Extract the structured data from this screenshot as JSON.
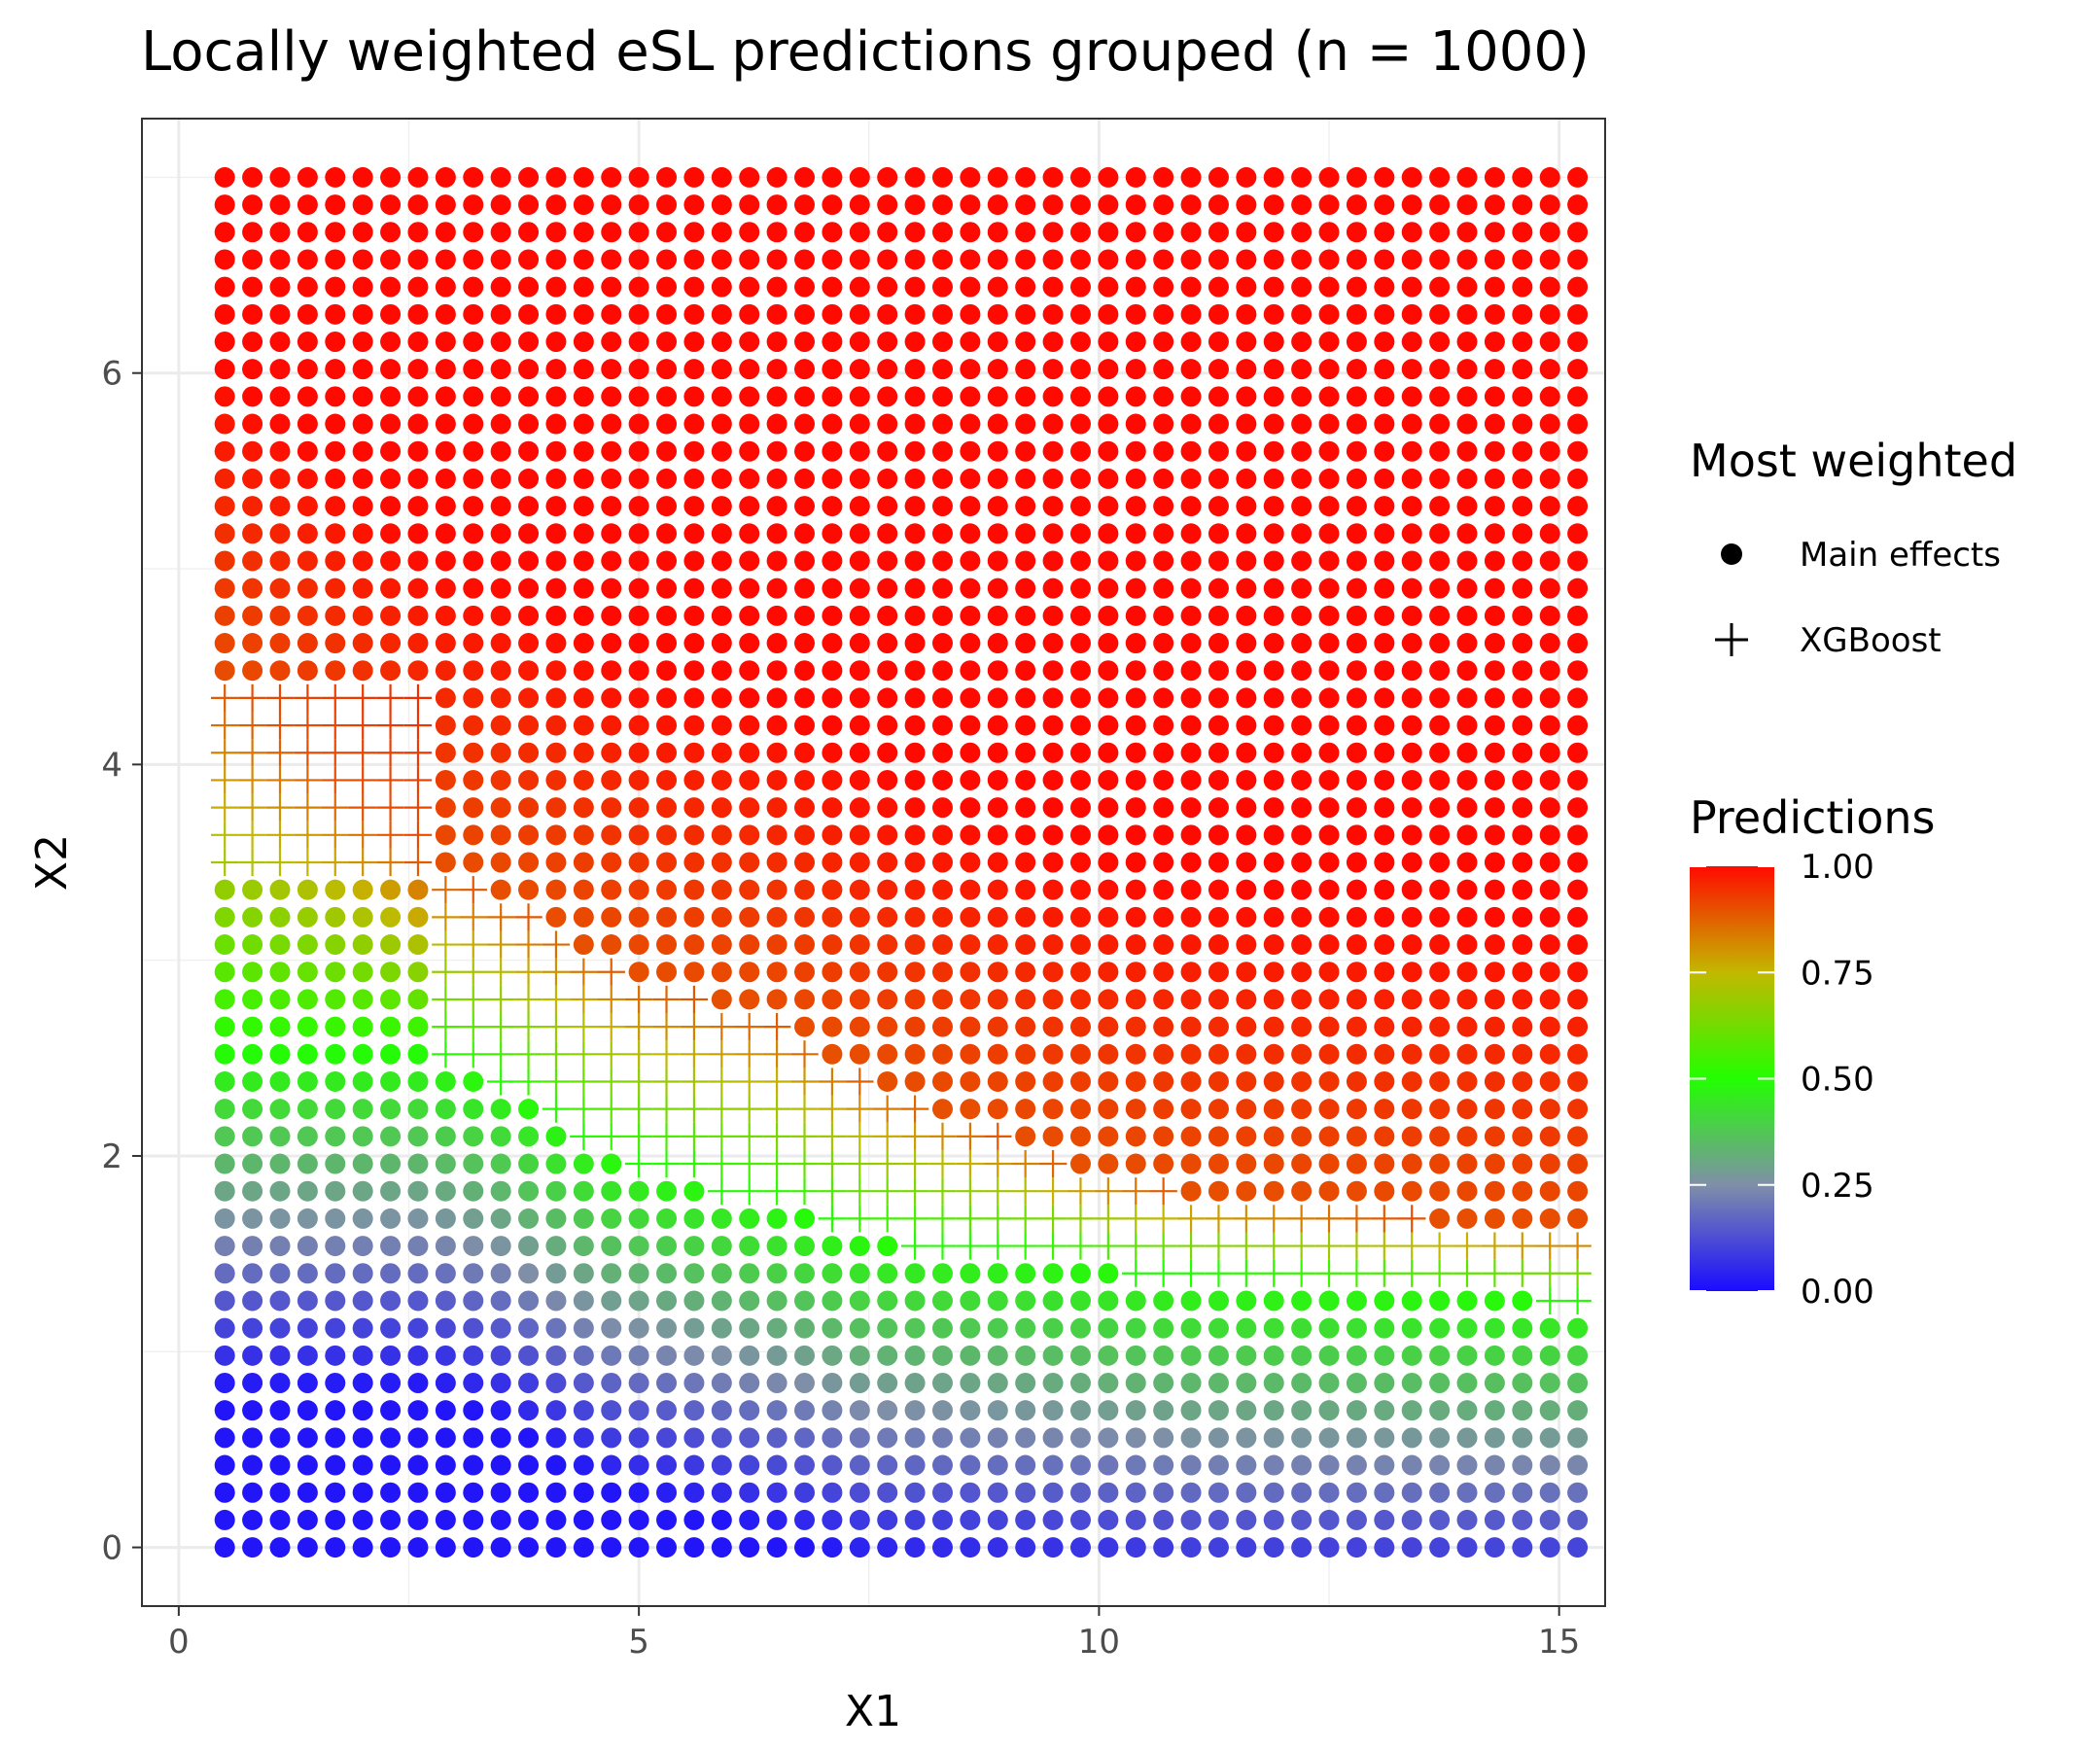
{
  "chart_data": {
    "type": "scatter",
    "title": "Locally weighted eSL predictions grouped (n = 1000)",
    "xlabel": "X1",
    "ylabel": "X2",
    "xlim": [
      -0.4,
      15.5
    ],
    "ylim": [
      -0.3,
      7.3
    ],
    "x_ticks": [
      0,
      5,
      10,
      15
    ],
    "y_ticks": [
      0,
      2,
      4,
      6
    ],
    "grid": true,
    "grid_spec": {
      "x_start": 0.4,
      "x_step": 0.3,
      "x_count": 50,
      "y_start": 0,
      "y_step": 0.14,
      "y_count": 51
    },
    "shape_legend": {
      "title": "Most weighted",
      "entries": [
        {
          "label": "Main effects",
          "shape": "circle"
        },
        {
          "label": "XGBoost",
          "shape": "plus"
        }
      ]
    },
    "color_legend": {
      "title": "Predictions",
      "breaks": [
        "0.00",
        "0.25",
        "0.50",
        "0.75",
        "1.00"
      ],
      "range": [
        0,
        1
      ],
      "gradient": [
        {
          "value": 0.0,
          "color": "#1a0cff"
        },
        {
          "value": 0.25,
          "color": "#7f8fa8"
        },
        {
          "value": 0.5,
          "color": "#22ff00"
        },
        {
          "value": 0.75,
          "color": "#c3b800"
        },
        {
          "value": 1.0,
          "color": "#ff0a00"
        }
      ]
    },
    "xgboost_band": {
      "left": {
        "x_max": 2.7,
        "y_min": 3.4,
        "y_max": 4.4
      },
      "boundary": [
        [
          0.4,
          4.45
        ],
        [
          2.7,
          3.5
        ],
        [
          4.0,
          3.2
        ],
        [
          5.0,
          2.9
        ],
        [
          6.5,
          2.7
        ],
        [
          7.5,
          2.4
        ],
        [
          8.5,
          2.2
        ],
        [
          9.5,
          2.0
        ],
        [
          11.0,
          1.8
        ],
        [
          13.0,
          1.7
        ],
        [
          15.1,
          1.6
        ]
      ],
      "lower": [
        [
          2.7,
          2.55
        ],
        [
          3.5,
          2.4
        ],
        [
          4.6,
          2.05
        ],
        [
          5.3,
          1.95
        ],
        [
          6.7,
          1.75
        ],
        [
          7.5,
          1.6
        ],
        [
          9.5,
          1.5
        ],
        [
          11.0,
          1.4
        ],
        [
          13.0,
          1.35
        ],
        [
          15.1,
          1.3
        ]
      ]
    }
  }
}
